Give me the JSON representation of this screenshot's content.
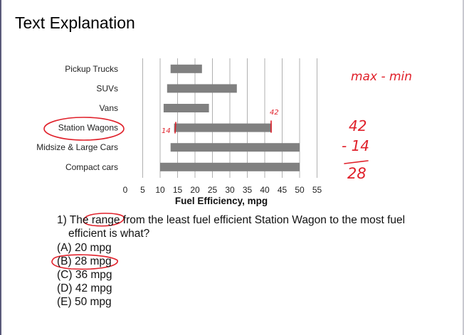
{
  "header": {
    "title": "Text Explanation"
  },
  "chart_data": {
    "type": "bar",
    "orientation": "horizontal",
    "categories": [
      "Pickup Trucks",
      "SUVs",
      "Vans",
      "Station Wagons",
      "Midsize & Large Cars",
      "Compact cars"
    ],
    "ranges": [
      [
        13,
        22
      ],
      [
        12,
        32
      ],
      [
        11,
        24
      ],
      [
        14,
        42
      ],
      [
        13,
        50
      ],
      [
        10,
        50
      ]
    ],
    "xlabel": "Fuel Efficiency, mpg",
    "xticks": [
      0,
      5,
      10,
      15,
      20,
      25,
      30,
      35,
      40,
      45,
      50,
      55
    ],
    "xlim": [
      0,
      55
    ],
    "grid": "vertical",
    "bar_color": "#808080"
  },
  "question": {
    "line1": "1) The range from the least fuel efficient Station Wagon to the most fuel",
    "line2": "efficient is what?",
    "options": [
      "(A) 20 mpg",
      "(B) 28 mpg",
      "(C) 36 mpg",
      "(D) 42 mpg",
      "(E) 50 mpg"
    ]
  },
  "annotations": {
    "formula": "max - min",
    "top": "42",
    "minus": "- 14",
    "result": "28",
    "bar_high": "42",
    "bar_low": "14",
    "ink_color": "#e0202a"
  }
}
